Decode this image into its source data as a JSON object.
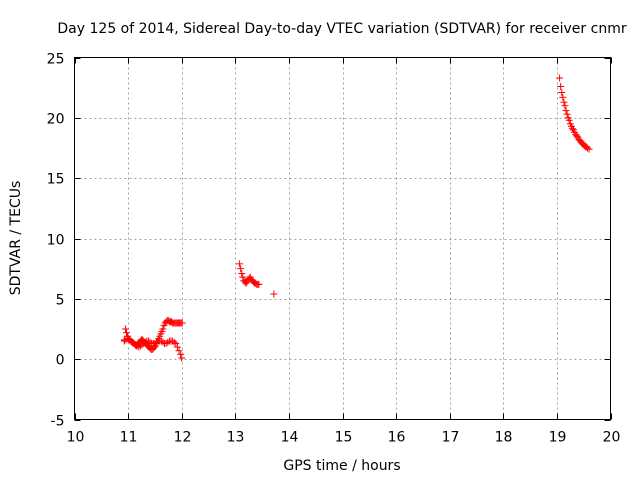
{
  "chart_data": {
    "type": "scatter",
    "title": "Day 125 of 2014, Sidereal Day-to-day VTEC variation (SDTVAR) for receiver cnmr",
    "xlabel": "GPS time / hours",
    "ylabel": "SDTVAR / TECUs",
    "xlim": [
      10,
      20
    ],
    "ylim": [
      -5,
      25
    ],
    "xticks": [
      10,
      11,
      12,
      13,
      14,
      15,
      16,
      17,
      18,
      19,
      20
    ],
    "yticks": [
      -5,
      0,
      5,
      10,
      15,
      20,
      25
    ],
    "grid": true,
    "marker": "+",
    "color": "#ff0000",
    "series": [
      {
        "name": "SDTVAR",
        "x": [
          10.93,
          10.95,
          10.97,
          10.99,
          11.01,
          11.03,
          11.05,
          11.07,
          11.09,
          11.11,
          11.13,
          11.15,
          11.17,
          11.19,
          11.21,
          11.23,
          11.25,
          11.27,
          11.29,
          11.31,
          11.33,
          11.35,
          11.37,
          11.39,
          11.41,
          11.43,
          11.45,
          11.47,
          11.49,
          11.51,
          11.53,
          11.55,
          11.57,
          11.59,
          11.61,
          11.63,
          11.65,
          11.67,
          11.69,
          11.71,
          11.73,
          11.75,
          11.77,
          11.79,
          11.81,
          11.83,
          11.85,
          11.87,
          11.89,
          11.91,
          11.93,
          11.95,
          11.97,
          11.99,
          12.01,
          10.93,
          10.96,
          10.99,
          11.02,
          11.05,
          11.08,
          11.11,
          11.14,
          11.17,
          11.2,
          11.23,
          11.26,
          11.29,
          11.32,
          11.35,
          11.38,
          11.41,
          11.44,
          11.47,
          11.5,
          11.53,
          11.56,
          11.59,
          11.62,
          11.65,
          11.68,
          11.71,
          11.74,
          11.77,
          11.8,
          11.83,
          11.86,
          11.89,
          11.92,
          11.95,
          11.98,
          12.0,
          13.08,
          13.1,
          13.12,
          13.14,
          13.16,
          13.18,
          13.2,
          13.22,
          13.24,
          13.26,
          13.28,
          13.3,
          13.32,
          13.34,
          13.36,
          13.38,
          13.4,
          13.42,
          13.44,
          13.72,
          19.05,
          19.07,
          19.09,
          19.11,
          19.13,
          19.15,
          19.17,
          19.19,
          19.21,
          19.23,
          19.25,
          19.27,
          19.29,
          19.31,
          19.33,
          19.35,
          19.37,
          19.39,
          19.41,
          19.43,
          19.45,
          19.47,
          19.49,
          19.51,
          19.53,
          19.55,
          19.57,
          19.6
        ],
        "y": [
          1.6,
          2.5,
          2.2,
          1.9,
          1.7,
          1.6,
          1.5,
          1.4,
          1.4,
          1.3,
          1.2,
          1.1,
          1.2,
          1.3,
          1.4,
          1.5,
          1.6,
          1.6,
          1.5,
          1.4,
          1.3,
          1.2,
          1.1,
          1.0,
          0.9,
          0.8,
          0.8,
          0.9,
          1.0,
          1.1,
          1.3,
          1.5,
          1.7,
          1.9,
          2.1,
          2.3,
          2.5,
          2.8,
          3.0,
          3.1,
          3.2,
          3.2,
          3.1,
          3.1,
          3.1,
          3.0,
          3.0,
          3.0,
          3.0,
          3.0,
          3.0,
          3.0,
          3.0,
          3.0,
          3.0,
          1.5,
          1.6,
          1.7,
          1.6,
          1.5,
          1.4,
          1.3,
          1.2,
          1.1,
          1.0,
          1.1,
          1.2,
          1.3,
          1.4,
          1.5,
          1.5,
          1.4,
          1.3,
          1.3,
          1.3,
          1.4,
          1.5,
          1.5,
          1.5,
          1.4,
          1.3,
          1.3,
          1.4,
          1.5,
          1.5,
          1.5,
          1.4,
          1.3,
          1.0,
          0.7,
          0.4,
          0.1,
          7.9,
          7.5,
          7.1,
          6.8,
          6.5,
          6.4,
          6.3,
          6.4,
          6.6,
          6.7,
          6.8,
          6.6,
          6.5,
          6.4,
          6.3,
          6.3,
          6.2,
          6.2,
          6.2,
          5.4,
          23.3,
          22.6,
          22.1,
          21.7,
          21.3,
          21.0,
          20.6,
          20.3,
          20.0,
          19.8,
          19.5,
          19.3,
          19.1,
          19.0,
          18.8,
          18.6,
          18.5,
          18.4,
          18.2,
          18.1,
          18.0,
          17.9,
          17.8,
          17.7,
          17.6,
          17.6,
          17.5,
          17.4
        ]
      }
    ]
  }
}
